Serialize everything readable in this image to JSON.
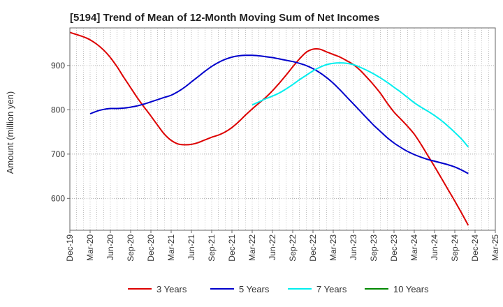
{
  "chart_data": {
    "type": "line",
    "title": "[5194]  Trend of Mean of 12-Month Moving Sum of Net Incomes",
    "ylabel": "Amount (million yen)",
    "xlabel": "",
    "ylim": [
      528,
      985
    ],
    "yticks": [
      600,
      700,
      800,
      900
    ],
    "x_ticks": [
      "Dec-19",
      "Mar-20",
      "Jun-20",
      "Sep-20",
      "Dec-20",
      "Mar-21",
      "Jun-21",
      "Sep-21",
      "Dec-21",
      "Mar-22",
      "Jun-22",
      "Sep-22",
      "Dec-22",
      "Mar-23",
      "Jun-23",
      "Sep-23",
      "Dec-23",
      "Mar-24",
      "Jun-24",
      "Sep-24",
      "Dec-24",
      "Mar-25"
    ],
    "grid": true,
    "legend_position": "bottom",
    "series": [
      {
        "name": "3 Years",
        "color": "#dd0000",
        "points": [
          [
            "Dec-19",
            975
          ],
          [
            "Jan-20",
            970
          ],
          [
            "Feb-20",
            965
          ],
          [
            "Mar-20",
            958
          ],
          [
            "Apr-20",
            948
          ],
          [
            "May-20",
            935
          ],
          [
            "Jun-20",
            918
          ],
          [
            "Jul-20",
            897
          ],
          [
            "Aug-20",
            873
          ],
          [
            "Sep-20",
            850
          ],
          [
            "Oct-20",
            827
          ],
          [
            "Nov-20",
            806
          ],
          [
            "Dec-20",
            786
          ],
          [
            "Jan-21",
            765
          ],
          [
            "Feb-21",
            745
          ],
          [
            "Mar-21",
            731
          ],
          [
            "Apr-21",
            723
          ],
          [
            "May-21",
            721
          ],
          [
            "Jun-21",
            722
          ],
          [
            "Jul-21",
            726
          ],
          [
            "Aug-21",
            732
          ],
          [
            "Sep-21",
            738
          ],
          [
            "Oct-21",
            743
          ],
          [
            "Nov-21",
            750
          ],
          [
            "Dec-21",
            760
          ],
          [
            "Jan-22",
            773
          ],
          [
            "Feb-22",
            788
          ],
          [
            "Mar-22",
            802
          ],
          [
            "Apr-22",
            815
          ],
          [
            "May-22",
            828
          ],
          [
            "Jun-22",
            843
          ],
          [
            "Jul-22",
            860
          ],
          [
            "Aug-22",
            878
          ],
          [
            "Sep-22",
            897
          ],
          [
            "Oct-22",
            915
          ],
          [
            "Nov-22",
            930
          ],
          [
            "Dec-22",
            937
          ],
          [
            "Jan-23",
            937
          ],
          [
            "Feb-23",
            931
          ],
          [
            "Mar-23",
            925
          ],
          [
            "Apr-23",
            919
          ],
          [
            "May-23",
            911
          ],
          [
            "Jun-23",
            902
          ],
          [
            "Jul-23",
            889
          ],
          [
            "Aug-23",
            873
          ],
          [
            "Sep-23",
            856
          ],
          [
            "Oct-23",
            837
          ],
          [
            "Nov-23",
            815
          ],
          [
            "Dec-23",
            795
          ],
          [
            "Jan-24",
            779
          ],
          [
            "Feb-24",
            763
          ],
          [
            "Mar-24",
            745
          ],
          [
            "Apr-24",
            722
          ],
          [
            "May-24",
            697
          ],
          [
            "Jun-24",
            672
          ],
          [
            "Jul-24",
            646
          ],
          [
            "Aug-24",
            620
          ],
          [
            "Sep-24",
            594
          ],
          [
            "Oct-24",
            567
          ],
          [
            "Nov-24",
            539
          ]
        ]
      },
      {
        "name": "5 Years",
        "color": "#0000cc",
        "points": [
          [
            "Mar-20",
            791
          ],
          [
            "Apr-20",
            797
          ],
          [
            "May-20",
            801
          ],
          [
            "Jun-20",
            803
          ],
          [
            "Jul-20",
            803
          ],
          [
            "Aug-20",
            804
          ],
          [
            "Sep-20",
            806
          ],
          [
            "Oct-20",
            809
          ],
          [
            "Nov-20",
            813
          ],
          [
            "Dec-20",
            818
          ],
          [
            "Jan-21",
            823
          ],
          [
            "Feb-21",
            828
          ],
          [
            "Mar-21",
            833
          ],
          [
            "Apr-21",
            841
          ],
          [
            "May-21",
            851
          ],
          [
            "Jun-21",
            863
          ],
          [
            "Jul-21",
            875
          ],
          [
            "Aug-21",
            887
          ],
          [
            "Sep-21",
            898
          ],
          [
            "Oct-21",
            907
          ],
          [
            "Nov-21",
            914
          ],
          [
            "Dec-21",
            919
          ],
          [
            "Jan-22",
            922
          ],
          [
            "Feb-22",
            923
          ],
          [
            "Mar-22",
            923
          ],
          [
            "Apr-22",
            922
          ],
          [
            "May-22",
            920
          ],
          [
            "Jun-22",
            918
          ],
          [
            "Jul-22",
            915
          ],
          [
            "Aug-22",
            912
          ],
          [
            "Sep-22",
            909
          ],
          [
            "Oct-22",
            905
          ],
          [
            "Nov-22",
            900
          ],
          [
            "Dec-22",
            893
          ],
          [
            "Jan-23",
            884
          ],
          [
            "Feb-23",
            873
          ],
          [
            "Mar-23",
            860
          ],
          [
            "Apr-23",
            845
          ],
          [
            "May-23",
            829
          ],
          [
            "Jun-23",
            813
          ],
          [
            "Jul-23",
            797
          ],
          [
            "Aug-23",
            781
          ],
          [
            "Sep-23",
            765
          ],
          [
            "Oct-23",
            751
          ],
          [
            "Nov-23",
            737
          ],
          [
            "Dec-23",
            725
          ],
          [
            "Jan-24",
            715
          ],
          [
            "Feb-24",
            706
          ],
          [
            "Mar-24",
            699
          ],
          [
            "Apr-24",
            693
          ],
          [
            "May-24",
            688
          ],
          [
            "Jun-24",
            684
          ],
          [
            "Jul-24",
            680
          ],
          [
            "Aug-24",
            676
          ],
          [
            "Sep-24",
            671
          ],
          [
            "Oct-24",
            664
          ],
          [
            "Nov-24",
            656
          ]
        ]
      },
      {
        "name": "7 Years",
        "color": "#00eeee",
        "points": [
          [
            "Mar-22",
            811
          ],
          [
            "Apr-22",
            818
          ],
          [
            "May-22",
            825
          ],
          [
            "Jun-22",
            831
          ],
          [
            "Jul-22",
            838
          ],
          [
            "Aug-22",
            847
          ],
          [
            "Sep-22",
            857
          ],
          [
            "Oct-22",
            868
          ],
          [
            "Nov-22",
            878
          ],
          [
            "Dec-22",
            888
          ],
          [
            "Jan-23",
            896
          ],
          [
            "Feb-23",
            902
          ],
          [
            "Mar-23",
            905
          ],
          [
            "Apr-23",
            906
          ],
          [
            "May-23",
            905
          ],
          [
            "Jun-23",
            902
          ],
          [
            "Jul-23",
            896
          ],
          [
            "Aug-23",
            889
          ],
          [
            "Sep-23",
            881
          ],
          [
            "Oct-23",
            872
          ],
          [
            "Nov-23",
            862
          ],
          [
            "Dec-23",
            851
          ],
          [
            "Jan-24",
            840
          ],
          [
            "Feb-24",
            828
          ],
          [
            "Mar-24",
            816
          ],
          [
            "Apr-24",
            806
          ],
          [
            "May-24",
            797
          ],
          [
            "Jun-24",
            787
          ],
          [
            "Jul-24",
            776
          ],
          [
            "Aug-24",
            763
          ],
          [
            "Sep-24",
            749
          ],
          [
            "Oct-24",
            734
          ],
          [
            "Nov-24",
            716
          ]
        ]
      },
      {
        "name": "10 Years",
        "color": "#008800",
        "points": []
      }
    ]
  }
}
